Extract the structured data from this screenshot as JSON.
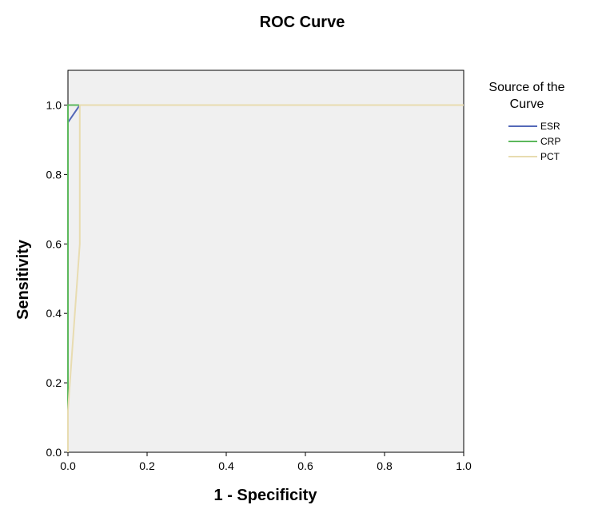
{
  "chart_data": {
    "type": "line",
    "title": "ROC Curve",
    "xlabel": "1 - Specificity",
    "ylabel": "Sensitivity",
    "xlim": [
      0,
      1
    ],
    "ylim": [
      0,
      1.1
    ],
    "x_ticks": [
      "0.0",
      "0.2",
      "0.4",
      "0.6",
      "0.8",
      "1.0"
    ],
    "y_ticks": [
      "0.0",
      "0.2",
      "0.4",
      "0.6",
      "0.8",
      "1.0"
    ],
    "grid": false,
    "plot_background": "#f0f0f0",
    "legend": {
      "title_lines": [
        "Source of the",
        "Curve"
      ],
      "position": "right"
    },
    "series": [
      {
        "name": "ESR",
        "color": "#5468b8",
        "points": [
          [
            0,
            0
          ],
          [
            0,
            0.95
          ],
          [
            0.03,
            1.0
          ],
          [
            1.0,
            1.0
          ]
        ]
      },
      {
        "name": "CRP",
        "color": "#5cb85c",
        "points": [
          [
            0,
            0
          ],
          [
            0,
            1.0
          ],
          [
            1.0,
            1.0
          ]
        ]
      },
      {
        "name": "PCT",
        "color": "#e8dcb0",
        "points": [
          [
            0,
            0
          ],
          [
            0,
            0.12
          ],
          [
            0.03,
            0.6
          ],
          [
            0.03,
            1.0
          ],
          [
            1.0,
            1.0
          ]
        ]
      }
    ]
  }
}
